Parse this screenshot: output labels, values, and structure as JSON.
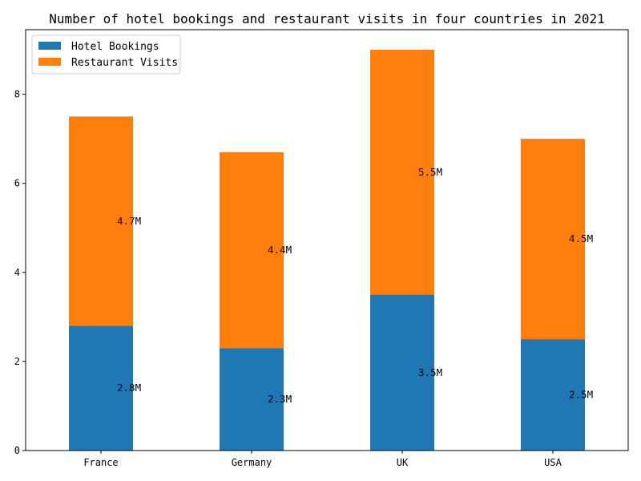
{
  "chart_data": {
    "type": "bar",
    "stacked": true,
    "title": "Number of hotel bookings and restaurant visits in four countries in 2021",
    "xlabel": "",
    "ylabel": "",
    "categories": [
      "France",
      "Germany",
      "UK",
      "USA"
    ],
    "series": [
      {
        "name": "Hotel Bookings",
        "values": [
          2.8,
          2.3,
          3.5,
          2.5
        ],
        "labels": [
          "2.8M",
          "2.3M",
          "3.5M",
          "2.5M"
        ],
        "color": "#1f77b4"
      },
      {
        "name": "Restaurant Visits",
        "values": [
          4.7,
          4.4,
          5.5,
          4.5
        ],
        "labels": [
          "4.7M",
          "4.4M",
          "5.5M",
          "4.5M"
        ],
        "color": "#ff7f0e"
      }
    ],
    "ylim": [
      0,
      9.45
    ],
    "yticks": [
      0,
      2,
      4,
      6,
      8
    ],
    "grid": false,
    "legend_position": "upper-left"
  }
}
